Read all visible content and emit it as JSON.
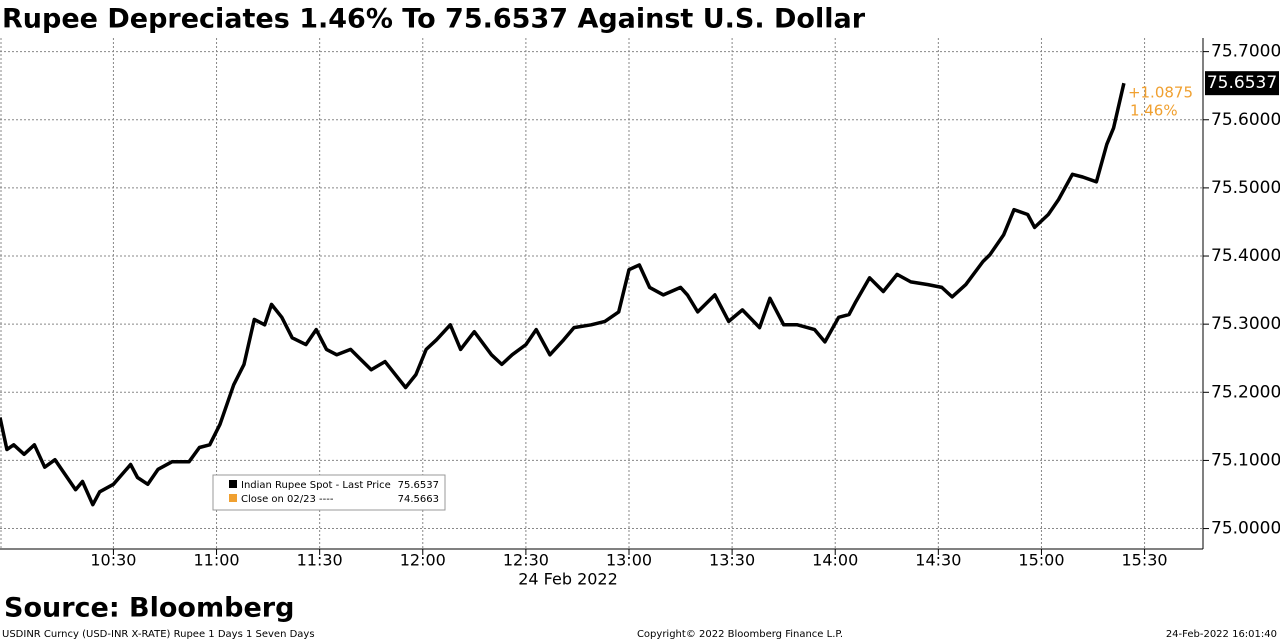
{
  "chart_data": {
    "type": "line",
    "title": "Rupee Depreciates 1.46% To 75.6537 Against U.S. Dollar",
    "source": "Source: Bloomberg",
    "xlabel": "24 Feb 2022",
    "footer": [
      "USDINR Curncy (USD-INR X-RATE) Rupee 1 Days 1 Seven Days",
      "Copyright© 2022 Bloomberg Finance L.P.",
      "24-Feb-2022 16:01:40"
    ],
    "annotations": [
      "+1.0875",
      "1.46%"
    ],
    "x": [
      "09:57",
      "09:59",
      "10:01",
      "10:04",
      "10:07",
      "10:10",
      "10:13",
      "10:16",
      "10:19",
      "10:21",
      "10:24",
      "10:26",
      "10:30",
      "10:35",
      "10:37",
      "10:40",
      "10:43",
      "10:47",
      "10:52",
      "10:55",
      "10:58",
      "11:01",
      "11:05",
      "11:08",
      "11:11",
      "11:14",
      "11:16",
      "11:19",
      "11:22",
      "11:26",
      "11:29",
      "11:32",
      "11:35",
      "11:39",
      "11:42",
      "11:45",
      "11:49",
      "11:52",
      "11:55",
      "11:58",
      "12:01",
      "12:04",
      "12:08",
      "12:11",
      "12:15",
      "12:20",
      "12:23",
      "12:26",
      "12:30",
      "12:33",
      "12:37",
      "12:41",
      "12:44",
      "12:49",
      "12:53",
      "12:57",
      "13:00",
      "13:03",
      "13:06",
      "13:10",
      "13:15",
      "13:17",
      "13:20",
      "13:25",
      "13:29",
      "13:33",
      "13:38",
      "13:41",
      "13:45",
      "13:49",
      "13:54",
      "13:57",
      "14:01",
      "14:04",
      "14:06",
      "14:10",
      "14:14",
      "14:18",
      "14:22",
      "14:27",
      "14:31",
      "14:34",
      "14:38",
      "14:43",
      "14:45",
      "14:49",
      "14:52",
      "14:56",
      "14:58",
      "15:02",
      "15:05",
      "15:09",
      "15:12",
      "15:16",
      "15:19",
      "15:21",
      "15:24"
    ],
    "series": [
      {
        "name": "Indian Rupee Spot - Last Price",
        "color": "#000000",
        "values": [
          75.163,
          75.116,
          75.123,
          75.109,
          75.123,
          75.09,
          75.101,
          75.079,
          75.057,
          75.069,
          75.035,
          75.054,
          75.065,
          75.094,
          75.075,
          75.065,
          75.087,
          75.098,
          75.098,
          75.119,
          75.123,
          75.153,
          75.211,
          75.241,
          75.307,
          75.299,
          75.329,
          75.31,
          75.28,
          75.27,
          75.292,
          75.263,
          75.255,
          75.263,
          75.248,
          75.233,
          75.245,
          75.226,
          75.207,
          75.226,
          75.263,
          75.277,
          75.299,
          75.263,
          75.289,
          75.255,
          75.241,
          75.255,
          75.27,
          75.292,
          75.255,
          75.277,
          75.295,
          75.299,
          75.304,
          75.318,
          75.38,
          75.387,
          75.354,
          75.343,
          75.354,
          75.343,
          75.318,
          75.343,
          75.304,
          75.321,
          75.295,
          75.338,
          75.299,
          75.299,
          75.292,
          75.274,
          75.31,
          75.314,
          75.333,
          75.368,
          75.348,
          75.373,
          75.362,
          75.358,
          75.354,
          75.34,
          75.358,
          75.392,
          75.402,
          75.431,
          75.468,
          75.461,
          75.442,
          75.461,
          75.483,
          75.52,
          75.516,
          75.509,
          75.564,
          75.588,
          75.6537
        ]
      }
    ],
    "reference": {
      "name": "Close on 02/23 ----",
      "value": 74.5663,
      "color": "#f0a030"
    },
    "xlim": [
      "09:57",
      "15:47"
    ],
    "xticks": [
      "10:30",
      "11:00",
      "11:30",
      "12:00",
      "12:30",
      "13:00",
      "13:30",
      "14:00",
      "14:30",
      "15:00",
      "15:30"
    ],
    "ylim": [
      74.97,
      75.72
    ],
    "yticks": [
      {
        "value": 75.0,
        "label": "75.0000"
      },
      {
        "value": 75.1,
        "label": "75.1000"
      },
      {
        "value": 75.2,
        "label": "75.2000"
      },
      {
        "value": 75.3,
        "label": "75.3000"
      },
      {
        "value": 75.4,
        "label": "75.4000"
      },
      {
        "value": 75.5,
        "label": "75.5000"
      },
      {
        "value": 75.6,
        "label": "75.6000"
      },
      {
        "value": 75.7,
        "label": "75.7000"
      }
    ],
    "grid": true
  }
}
